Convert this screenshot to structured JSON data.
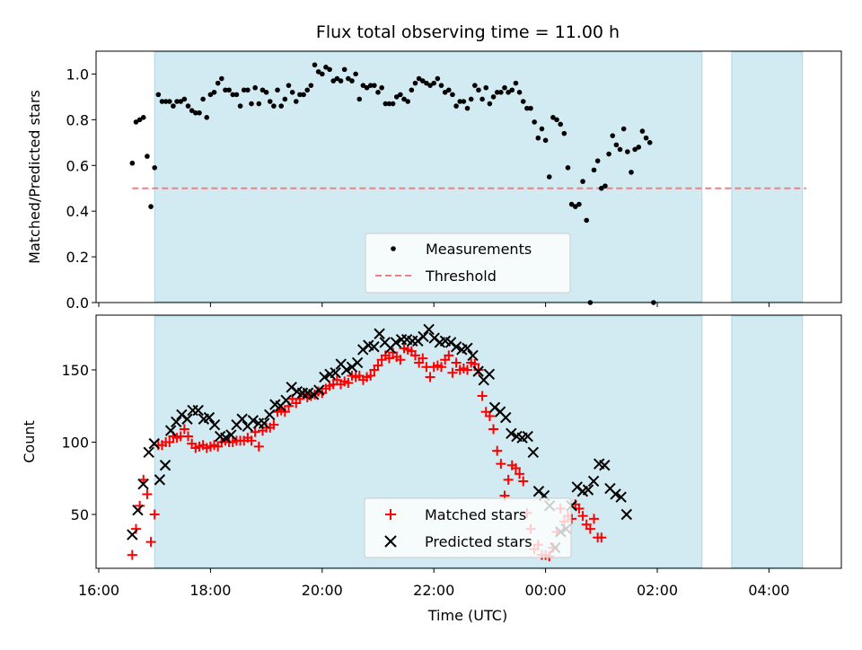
{
  "chart_data": [
    {
      "type": "scatter",
      "title": "Flux total observing time = 11.00 h",
      "ylabel": "Matched/Predicted stars",
      "xlabel": "",
      "xlim": [
        "16:00",
        "05:20"
      ],
      "ylim": [
        0,
        1.1
      ],
      "yticks": [
        "0.0",
        "0.2",
        "0.4",
        "0.6",
        "0.8",
        "1.0"
      ],
      "shaded_intervals": [
        [
          "17:00",
          "02:48"
        ],
        [
          "03:20",
          "04:36"
        ]
      ],
      "shade_color": "#add8e6",
      "legend_position": "lower center",
      "series": [
        {
          "name": "Measurements",
          "color": "#000000",
          "marker": "dot",
          "points": [
            [
              "16:36",
              0.61
            ],
            [
              "16:40",
              0.79
            ],
            [
              "16:44",
              0.8
            ],
            [
              "16:48",
              0.81
            ],
            [
              "16:52",
              0.64
            ],
            [
              "16:56",
              0.42
            ],
            [
              "17:00",
              0.59
            ],
            [
              "17:04",
              0.91
            ],
            [
              "17:08",
              0.88
            ],
            [
              "17:12",
              0.88
            ],
            [
              "17:16",
              0.88
            ],
            [
              "17:20",
              0.86
            ],
            [
              "17:24",
              0.88
            ],
            [
              "17:28",
              0.88
            ],
            [
              "17:32",
              0.89
            ],
            [
              "17:36",
              0.86
            ],
            [
              "17:40",
              0.84
            ],
            [
              "17:44",
              0.83
            ],
            [
              "17:48",
              0.83
            ],
            [
              "17:52",
              0.89
            ],
            [
              "17:56",
              0.81
            ],
            [
              "18:00",
              0.91
            ],
            [
              "18:04",
              0.92
            ],
            [
              "18:08",
              0.96
            ],
            [
              "18:12",
              0.98
            ],
            [
              "18:16",
              0.93
            ],
            [
              "18:20",
              0.93
            ],
            [
              "18:24",
              0.91
            ],
            [
              "18:28",
              0.91
            ],
            [
              "18:32",
              0.86
            ],
            [
              "18:36",
              0.93
            ],
            [
              "18:40",
              0.93
            ],
            [
              "18:44",
              0.87
            ],
            [
              "18:48",
              0.94
            ],
            [
              "18:52",
              0.87
            ],
            [
              "18:56",
              0.93
            ],
            [
              "19:00",
              0.92
            ],
            [
              "19:04",
              0.88
            ],
            [
              "19:08",
              0.86
            ],
            [
              "19:12",
              0.93
            ],
            [
              "19:16",
              0.86
            ],
            [
              "19:20",
              0.89
            ],
            [
              "19:24",
              0.95
            ],
            [
              "19:28",
              0.92
            ],
            [
              "19:32",
              0.88
            ],
            [
              "19:36",
              0.91
            ],
            [
              "19:40",
              0.91
            ],
            [
              "19:44",
              0.93
            ],
            [
              "19:48",
              0.95
            ],
            [
              "19:52",
              1.04
            ],
            [
              "19:56",
              1.01
            ],
            [
              "20:00",
              1.0
            ],
            [
              "20:04",
              1.03
            ],
            [
              "20:08",
              1.02
            ],
            [
              "20:12",
              0.97
            ],
            [
              "20:16",
              0.98
            ],
            [
              "20:20",
              0.97
            ],
            [
              "20:24",
              1.02
            ],
            [
              "20:28",
              0.98
            ],
            [
              "20:32",
              0.97
            ],
            [
              "20:36",
              1.0
            ],
            [
              "20:40",
              0.89
            ],
            [
              "20:44",
              0.95
            ],
            [
              "20:48",
              0.94
            ],
            [
              "20:52",
              0.95
            ],
            [
              "20:56",
              0.95
            ],
            [
              "21:00",
              0.92
            ],
            [
              "21:04",
              0.94
            ],
            [
              "21:08",
              0.87
            ],
            [
              "21:12",
              0.87
            ],
            [
              "21:16",
              0.87
            ],
            [
              "21:20",
              0.9
            ],
            [
              "21:24",
              0.91
            ],
            [
              "21:28",
              0.89
            ],
            [
              "21:32",
              0.88
            ],
            [
              "21:36",
              0.93
            ],
            [
              "21:40",
              0.96
            ],
            [
              "21:44",
              0.98
            ],
            [
              "21:48",
              0.97
            ],
            [
              "21:52",
              0.96
            ],
            [
              "21:56",
              0.95
            ],
            [
              "22:00",
              0.96
            ],
            [
              "22:04",
              0.98
            ],
            [
              "22:08",
              0.95
            ],
            [
              "22:12",
              0.92
            ],
            [
              "22:16",
              0.93
            ],
            [
              "22:20",
              0.91
            ],
            [
              "22:24",
              0.86
            ],
            [
              "22:28",
              0.88
            ],
            [
              "22:32",
              0.88
            ],
            [
              "22:36",
              0.85
            ],
            [
              "22:40",
              0.89
            ],
            [
              "22:44",
              0.95
            ],
            [
              "22:48",
              0.93
            ],
            [
              "22:52",
              0.89
            ],
            [
              "22:56",
              0.94
            ],
            [
              "23:00",
              0.87
            ],
            [
              "23:04",
              0.9
            ],
            [
              "23:08",
              0.92
            ],
            [
              "23:12",
              0.92
            ],
            [
              "23:16",
              0.94
            ],
            [
              "23:20",
              0.92
            ],
            [
              "23:24",
              0.93
            ],
            [
              "23:28",
              0.96
            ],
            [
              "23:32",
              0.92
            ],
            [
              "23:36",
              0.88
            ],
            [
              "23:40",
              0.85
            ],
            [
              "23:44",
              0.85
            ],
            [
              "23:48",
              0.79
            ],
            [
              "23:52",
              0.72
            ],
            [
              "23:56",
              0.76
            ],
            [
              "00:00",
              0.71
            ],
            [
              "00:04",
              0.55
            ],
            [
              "00:08",
              0.81
            ],
            [
              "00:12",
              0.8
            ],
            [
              "00:16",
              0.78
            ],
            [
              "00:20",
              0.74
            ],
            [
              "00:24",
              0.59
            ],
            [
              "00:28",
              0.43
            ],
            [
              "00:32",
              0.42
            ],
            [
              "00:36",
              0.43
            ],
            [
              "00:40",
              0.53
            ],
            [
              "00:44",
              0.36
            ],
            [
              "00:48",
              0.0
            ],
            [
              "00:52",
              0.58
            ],
            [
              "00:56",
              0.62
            ],
            [
              "01:00",
              0.5
            ],
            [
              "01:04",
              0.51
            ],
            [
              "01:08",
              0.65
            ],
            [
              "01:12",
              0.73
            ],
            [
              "01:16",
              0.69
            ],
            [
              "01:20",
              0.67
            ],
            [
              "01:24",
              0.76
            ],
            [
              "01:28",
              0.66
            ],
            [
              "01:32",
              0.57
            ],
            [
              "01:36",
              0.67
            ],
            [
              "01:40",
              0.68
            ],
            [
              "01:44",
              0.75
            ],
            [
              "01:48",
              0.72
            ],
            [
              "01:52",
              0.7
            ],
            [
              "01:56",
              0.0
            ]
          ]
        },
        {
          "name": "Threshold",
          "color": "#f08080",
          "style": "dashed",
          "points": [
            [
              "16:36",
              0.5
            ],
            [
              "04:40",
              0.5
            ]
          ]
        }
      ]
    },
    {
      "type": "scatter",
      "xlabel": "Time (UTC)",
      "ylabel": "Count",
      "xticks": [
        "16:00",
        "18:00",
        "20:00",
        "22:00",
        "00:00",
        "02:00",
        "04:00"
      ],
      "yticks": [
        "50",
        "100",
        "150"
      ],
      "ylim": [
        12,
        185
      ],
      "shaded_intervals": [
        [
          "17:00",
          "02:48"
        ],
        [
          "03:20",
          "04:36"
        ]
      ],
      "shade_color": "#add8e6",
      "legend_position": "lower center",
      "series": [
        {
          "name": "Matched stars",
          "color": "#ff0000",
          "marker": "plus",
          "values": [
            22,
            40,
            56,
            74,
            64,
            31,
            50,
            98,
            98,
            100,
            100,
            104,
            103,
            104,
            109,
            104,
            99,
            96,
            97,
            98,
            96,
            97,
            98,
            97,
            100,
            101,
            100,
            100,
            101,
            101,
            101,
            103,
            101,
            107,
            97,
            108,
            110,
            110,
            112,
            121,
            122,
            121,
            125,
            130,
            127,
            130,
            134,
            131,
            132,
            133,
            135,
            134,
            137,
            139,
            140,
            143,
            140,
            142,
            141,
            146,
            145,
            146,
            143,
            145,
            146,
            150,
            153,
            157,
            160,
            158,
            162,
            159,
            157,
            165,
            164,
            163,
            160,
            155,
            158,
            152,
            145,
            152,
            153,
            152,
            157,
            160,
            148,
            155,
            150,
            151,
            150,
            155,
            154,
            150,
            132,
            121,
            118,
            109,
            94,
            85,
            63,
            74,
            84,
            82,
            78,
            73,
            51,
            40,
            26,
            29,
            22,
            22,
            21,
            27,
            38,
            54,
            45,
            49,
            47,
            57,
            54,
            49,
            43,
            40,
            47,
            34,
            34
          ],
          "start": "16:36",
          "step_minutes": 4
        },
        {
          "name": "Predicted stars",
          "color": "#000000",
          "marker": "x",
          "values": [
            36,
            53,
            71,
            93,
            99,
            74,
            84,
            108,
            114,
            119,
            116,
            122,
            122,
            116,
            117,
            112,
            104,
            103,
            105,
            112,
            116,
            111,
            115,
            113,
            113,
            119,
            126,
            125,
            129,
            138,
            135,
            134,
            134,
            133,
            136,
            145,
            147,
            148,
            154,
            150,
            152,
            155,
            164,
            167,
            166,
            175,
            169,
            165,
            169,
            171,
            171,
            170,
            170,
            173,
            178,
            172,
            169,
            170,
            169,
            166,
            164,
            165,
            160,
            149,
            143,
            147,
            124,
            121,
            117,
            106,
            104,
            103,
            104,
            93,
            66,
            63,
            56,
            27,
            38,
            40,
            56,
            69,
            66,
            67,
            73,
            85,
            84,
            68,
            64,
            62,
            50
          ],
          "start": "16:36",
          "step_minutes": 5.9
        }
      ]
    }
  ]
}
